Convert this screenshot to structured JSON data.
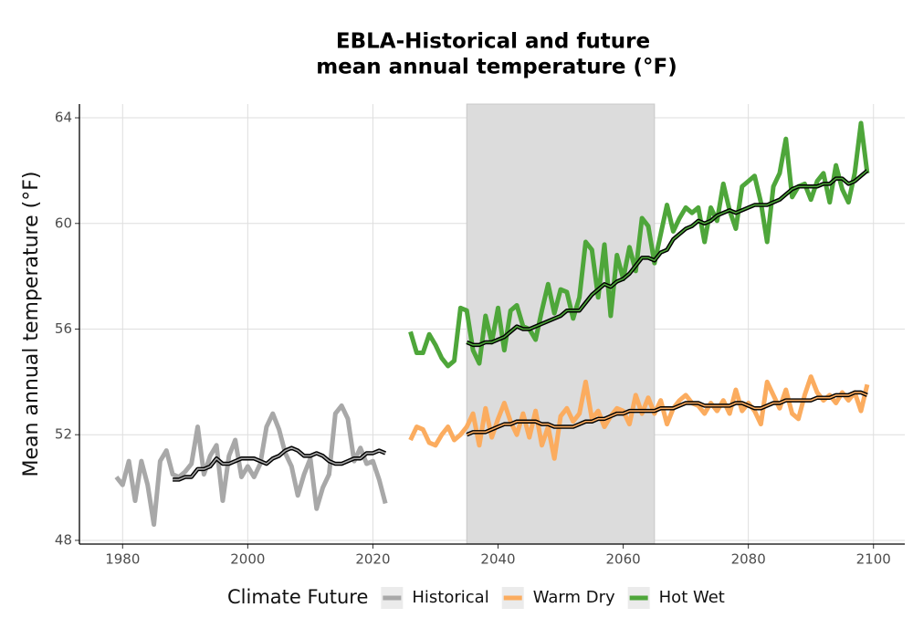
{
  "chart_data": {
    "type": "line",
    "title": [
      "EBLA-Historical and future",
      "mean annual temperature (°F)"
    ],
    "y_label": "Mean annual temperature (°F)",
    "legend_title": "Climate Future",
    "legend_position": "bottom",
    "grid": true,
    "shade": [
      2035,
      2065
    ],
    "shade_color": "#dcdcdc",
    "xlim": [
      1973.1,
      2105
    ],
    "ylim": [
      47.86,
      64.52
    ],
    "xticks": [
      1980,
      2000,
      2020,
      2040,
      2060,
      2080,
      2100
    ],
    "yticks": [
      48,
      52,
      56,
      60,
      64
    ],
    "series": [
      {
        "name": "Historical",
        "color": "#a8a8a8",
        "x": [
          1979,
          1980,
          1981,
          1982,
          1983,
          1984,
          1985,
          1986,
          1987,
          1988,
          1989,
          1990,
          1991,
          1992,
          1993,
          1994,
          1995,
          1996,
          1997,
          1998,
          1999,
          2000,
          2001,
          2002,
          2003,
          2004,
          2005,
          2006,
          2007,
          2008,
          2009,
          2010,
          2011,
          2012,
          2013,
          2014,
          2015,
          2016,
          2017,
          2018,
          2019,
          2020,
          2021,
          2022
        ],
        "values": [
          50.4,
          50.1,
          51.0,
          49.5,
          51.0,
          50.1,
          48.6,
          51.0,
          51.4,
          50.5,
          50.4,
          50.6,
          50.9,
          52.3,
          50.5,
          51.2,
          51.6,
          49.5,
          51.2,
          51.8,
          50.4,
          50.8,
          50.4,
          50.9,
          52.3,
          52.8,
          52.2,
          51.3,
          50.8,
          49.7,
          50.5,
          51.1,
          49.2,
          50.0,
          50.5,
          52.8,
          53.1,
          52.6,
          51.0,
          51.5,
          50.9,
          51.0,
          50.3,
          49.4
        ],
        "rolling": [
          null,
          null,
          null,
          null,
          null,
          null,
          null,
          null,
          null,
          50.3,
          50.3,
          50.4,
          50.4,
          50.7,
          50.7,
          50.8,
          51.1,
          50.9,
          50.9,
          51.0,
          51.1,
          51.1,
          51.1,
          51.0,
          50.9,
          51.1,
          51.2,
          51.4,
          51.5,
          51.4,
          51.2,
          51.2,
          51.3,
          51.2,
          51.0,
          50.9,
          50.9,
          51.0,
          51.1,
          51.1,
          51.3,
          51.3,
          51.4,
          51.3
        ]
      },
      {
        "name": "Warm Dry",
        "color": "#fbac5f",
        "x": [
          2026,
          2027,
          2028,
          2029,
          2030,
          2031,
          2032,
          2033,
          2034,
          2035,
          2036,
          2037,
          2038,
          2039,
          2040,
          2041,
          2042,
          2043,
          2044,
          2045,
          2046,
          2047,
          2048,
          2049,
          2050,
          2051,
          2052,
          2053,
          2054,
          2055,
          2056,
          2057,
          2058,
          2059,
          2060,
          2061,
          2062,
          2063,
          2064,
          2065,
          2066,
          2067,
          2068,
          2069,
          2070,
          2071,
          2072,
          2073,
          2074,
          2075,
          2076,
          2077,
          2078,
          2079,
          2080,
          2081,
          2082,
          2083,
          2084,
          2085,
          2086,
          2087,
          2088,
          2089,
          2090,
          2091,
          2092,
          2093,
          2094,
          2095,
          2096,
          2097,
          2098,
          2099
        ],
        "values": [
          51.8,
          52.3,
          52.2,
          51.7,
          51.6,
          52.0,
          52.3,
          51.8,
          52.0,
          52.3,
          52.8,
          51.6,
          53.0,
          51.9,
          52.6,
          53.2,
          52.5,
          52.0,
          52.8,
          51.9,
          52.9,
          51.6,
          52.3,
          51.1,
          52.7,
          53.0,
          52.5,
          52.8,
          54.0,
          52.6,
          52.9,
          52.3,
          52.7,
          53.0,
          52.9,
          52.4,
          53.5,
          52.8,
          53.4,
          52.8,
          53.3,
          52.4,
          53.0,
          53.3,
          53.5,
          53.2,
          53.1,
          52.8,
          53.2,
          52.9,
          53.3,
          52.8,
          53.7,
          52.9,
          53.2,
          52.9,
          52.4,
          54.0,
          53.5,
          53.0,
          53.7,
          52.8,
          52.6,
          53.5,
          54.2,
          53.6,
          53.3,
          53.5,
          53.2,
          53.6,
          53.3,
          53.6,
          52.9,
          53.9
        ],
        "rolling": [
          null,
          null,
          null,
          null,
          null,
          null,
          null,
          null,
          null,
          52.0,
          52.1,
          52.1,
          52.1,
          52.2,
          52.3,
          52.4,
          52.4,
          52.5,
          52.5,
          52.5,
          52.5,
          52.4,
          52.4,
          52.3,
          52.3,
          52.3,
          52.3,
          52.4,
          52.5,
          52.5,
          52.6,
          52.6,
          52.7,
          52.8,
          52.8,
          52.9,
          52.9,
          52.9,
          52.9,
          52.9,
          53.0,
          53.0,
          53.0,
          53.1,
          53.2,
          53.2,
          53.2,
          53.1,
          53.1,
          53.1,
          53.1,
          53.1,
          53.2,
          53.2,
          53.1,
          53.0,
          53.0,
          53.1,
          53.2,
          53.2,
          53.3,
          53.3,
          53.3,
          53.3,
          53.3,
          53.4,
          53.4,
          53.4,
          53.5,
          53.5,
          53.5,
          53.6,
          53.6,
          53.5
        ]
      },
      {
        "name": "Hot Wet",
        "color": "#4ea63a",
        "x": [
          2026,
          2027,
          2028,
          2029,
          2030,
          2031,
          2032,
          2033,
          2034,
          2035,
          2036,
          2037,
          2038,
          2039,
          2040,
          2041,
          2042,
          2043,
          2044,
          2045,
          2046,
          2047,
          2048,
          2049,
          2050,
          2051,
          2052,
          2053,
          2054,
          2055,
          2056,
          2057,
          2058,
          2059,
          2060,
          2061,
          2062,
          2063,
          2064,
          2065,
          2066,
          2067,
          2068,
          2069,
          2070,
          2071,
          2072,
          2073,
          2074,
          2075,
          2076,
          2077,
          2078,
          2079,
          2080,
          2081,
          2082,
          2083,
          2084,
          2085,
          2086,
          2087,
          2088,
          2089,
          2090,
          2091,
          2092,
          2093,
          2094,
          2095,
          2096,
          2097,
          2098,
          2099
        ],
        "values": [
          55.9,
          55.1,
          55.1,
          55.8,
          55.4,
          54.9,
          54.6,
          54.8,
          56.8,
          56.7,
          55.2,
          54.7,
          56.5,
          55.5,
          56.8,
          55.2,
          56.7,
          56.9,
          56.1,
          56.0,
          55.6,
          56.7,
          57.7,
          56.6,
          57.5,
          57.4,
          56.4,
          57.2,
          59.3,
          59.0,
          57.2,
          59.2,
          56.5,
          58.8,
          57.9,
          59.1,
          58.2,
          60.2,
          59.9,
          58.5,
          59.6,
          60.7,
          59.7,
          60.2,
          60.6,
          60.4,
          60.6,
          59.3,
          60.6,
          60.1,
          61.5,
          60.5,
          59.8,
          61.4,
          61.6,
          61.8,
          60.8,
          59.3,
          61.4,
          61.9,
          63.2,
          61.0,
          61.4,
          61.5,
          60.9,
          61.6,
          61.9,
          60.8,
          62.2,
          61.3,
          60.8,
          61.9,
          63.8,
          61.9
        ],
        "rolling": [
          null,
          null,
          null,
          null,
          null,
          null,
          null,
          null,
          null,
          55.5,
          55.4,
          55.4,
          55.5,
          55.5,
          55.6,
          55.7,
          55.9,
          56.1,
          56.0,
          56.0,
          56.1,
          56.2,
          56.3,
          56.4,
          56.5,
          56.7,
          56.7,
          56.7,
          57.0,
          57.3,
          57.5,
          57.7,
          57.6,
          57.8,
          57.9,
          58.1,
          58.4,
          58.7,
          58.7,
          58.6,
          58.9,
          59.0,
          59.4,
          59.6,
          59.8,
          59.9,
          60.1,
          60.0,
          60.1,
          60.3,
          60.4,
          60.5,
          60.4,
          60.5,
          60.6,
          60.7,
          60.7,
          60.7,
          60.8,
          60.9,
          61.1,
          61.3,
          61.4,
          61.4,
          61.4,
          61.4,
          61.5,
          61.5,
          61.7,
          61.7,
          61.5,
          61.6,
          61.8,
          62.0
        ]
      }
    ]
  }
}
